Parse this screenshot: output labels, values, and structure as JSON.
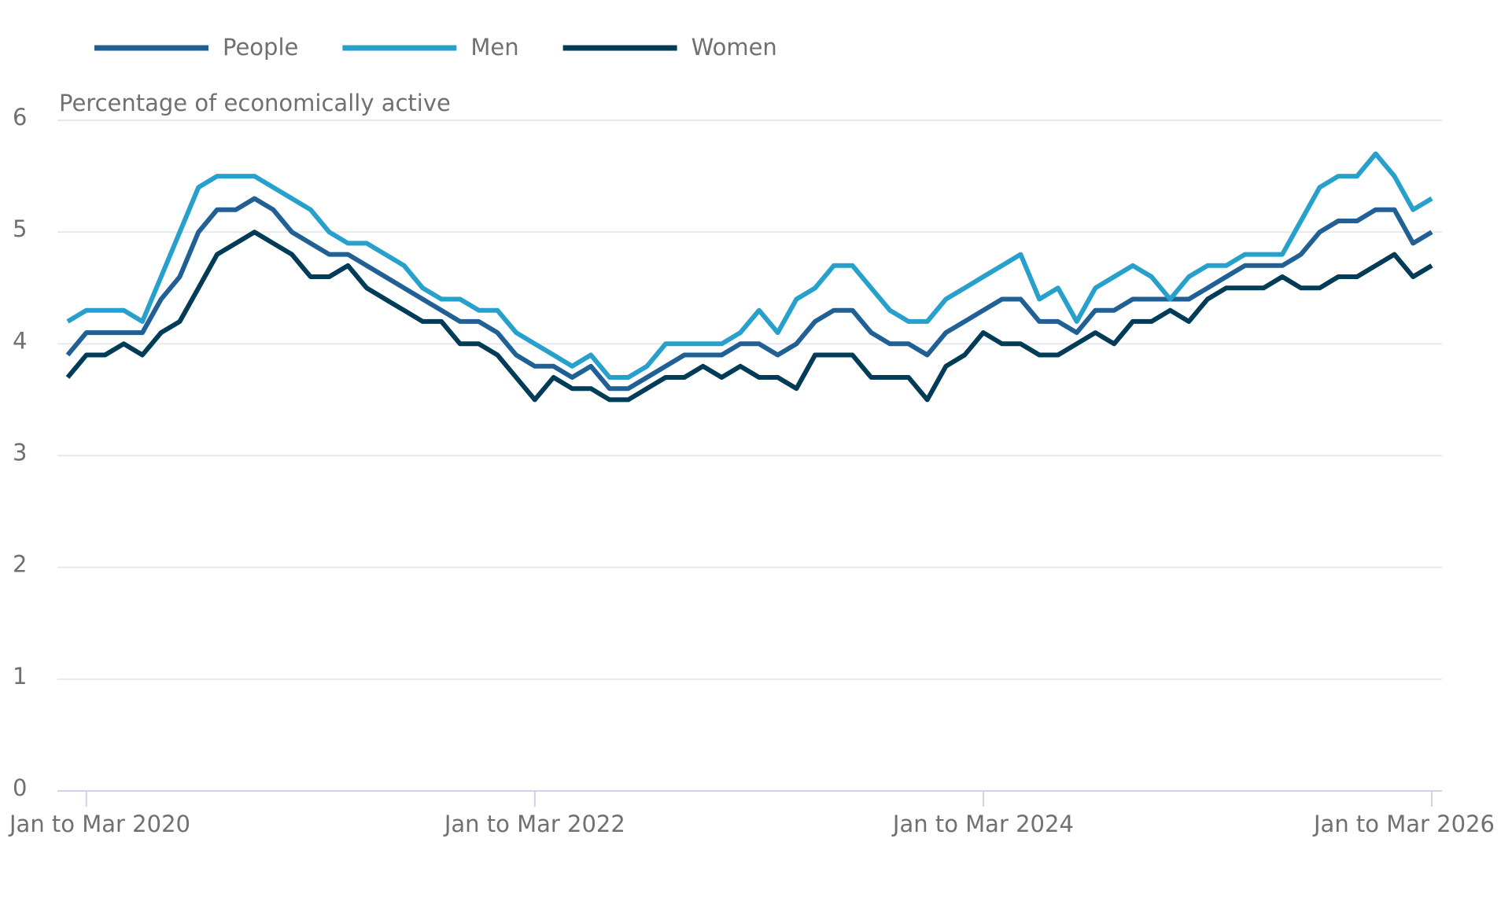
{
  "chart_data": {
    "type": "line",
    "y_axis_label": "Percentage of economically active",
    "categories": [
      null,
      "Jan to Mar 2020",
      null,
      null,
      null,
      null,
      null,
      null,
      null,
      null,
      null,
      null,
      null,
      null,
      null,
      null,
      null,
      null,
      null,
      null,
      null,
      null,
      null,
      null,
      null,
      "Jan to Mar 2022",
      null,
      null,
      null,
      null,
      null,
      null,
      null,
      null,
      null,
      null,
      null,
      null,
      null,
      null,
      null,
      null,
      null,
      null,
      null,
      null,
      null,
      null,
      null,
      "Jan to Mar 2024",
      null,
      null,
      null,
      null,
      null,
      null,
      null,
      null,
      null,
      null,
      null,
      null,
      null,
      null,
      null,
      null,
      null,
      null,
      null,
      null,
      null,
      null,
      null,
      "Jan to Mar 2026"
    ],
    "series": [
      {
        "name": "People",
        "color": "#206095",
        "values": [
          3.9,
          4.1,
          4.1,
          4.1,
          4.1,
          4.4,
          4.6,
          5.0,
          5.2,
          5.2,
          5.3,
          5.2,
          5.0,
          4.9,
          4.8,
          4.8,
          4.7,
          4.6,
          4.5,
          4.4,
          4.3,
          4.2,
          4.2,
          4.1,
          3.9,
          3.8,
          3.8,
          3.7,
          3.8,
          3.6,
          3.6,
          3.7,
          3.8,
          3.9,
          3.9,
          3.9,
          4.0,
          4.0,
          3.9,
          4.0,
          4.2,
          4.3,
          4.3,
          4.1,
          4.0,
          4.0,
          3.9,
          4.1,
          4.2,
          4.3,
          4.4,
          4.4,
          4.2,
          4.2,
          4.1,
          4.3,
          4.3,
          4.4,
          4.4,
          4.4,
          4.4,
          4.5,
          4.6,
          4.7,
          4.7,
          4.7,
          4.8,
          5.0,
          5.1,
          5.1,
          5.2,
          5.2,
          4.9,
          5.0
        ]
      },
      {
        "name": "Men",
        "color": "#27a0cc",
        "values": [
          4.2,
          4.3,
          4.3,
          4.3,
          4.2,
          4.6,
          5.0,
          5.4,
          5.5,
          5.5,
          5.5,
          5.4,
          5.3,
          5.2,
          5.0,
          4.9,
          4.9,
          4.8,
          4.7,
          4.5,
          4.4,
          4.4,
          4.3,
          4.3,
          4.1,
          4.0,
          3.9,
          3.8,
          3.9,
          3.7,
          3.7,
          3.8,
          4.0,
          4.0,
          4.0,
          4.0,
          4.1,
          4.3,
          4.1,
          4.4,
          4.5,
          4.7,
          4.7,
          4.5,
          4.3,
          4.2,
          4.2,
          4.4,
          4.5,
          4.6,
          4.7,
          4.8,
          4.4,
          4.5,
          4.2,
          4.5,
          4.6,
          4.7,
          4.6,
          4.4,
          4.6,
          4.7,
          4.7,
          4.8,
          4.8,
          4.8,
          5.1,
          5.4,
          5.5,
          5.5,
          5.7,
          5.5,
          5.2,
          5.3
        ]
      },
      {
        "name": "Women",
        "color": "#003c57",
        "values": [
          3.7,
          3.9,
          3.9,
          4.0,
          3.9,
          4.1,
          4.2,
          4.5,
          4.8,
          4.9,
          5.0,
          4.9,
          4.8,
          4.6,
          4.6,
          4.7,
          4.5,
          4.4,
          4.3,
          4.2,
          4.2,
          4.0,
          4.0,
          3.9,
          3.7,
          3.5,
          3.7,
          3.6,
          3.6,
          3.5,
          3.5,
          3.6,
          3.7,
          3.7,
          3.8,
          3.7,
          3.8,
          3.7,
          3.7,
          3.6,
          3.9,
          3.9,
          3.9,
          3.7,
          3.7,
          3.7,
          3.5,
          3.8,
          3.9,
          4.1,
          4.0,
          4.0,
          3.9,
          3.9,
          4.0,
          4.1,
          4.0,
          4.2,
          4.2,
          4.3,
          4.2,
          4.4,
          4.5,
          4.5,
          4.5,
          4.6,
          4.5,
          4.5,
          4.6,
          4.6,
          4.7,
          4.8,
          4.6,
          4.7
        ]
      }
    ],
    "ylim": [
      0,
      6
    ],
    "yticks": [
      0,
      1,
      2,
      3,
      4,
      5,
      6
    ],
    "grid": true
  }
}
